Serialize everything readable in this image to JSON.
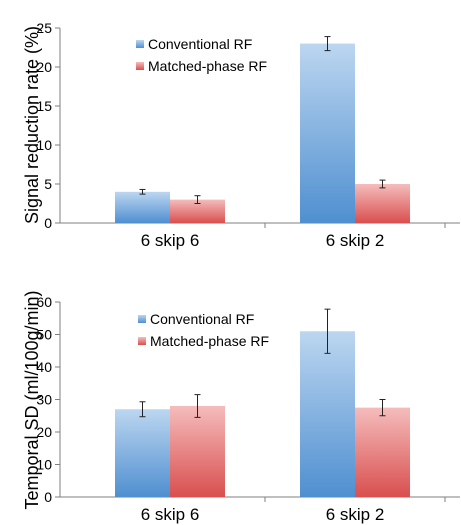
{
  "chart_data": [
    {
      "type": "bar",
      "categories": [
        "6 skip 6",
        "6 skip 2"
      ],
      "series": [
        {
          "name": "Conventional RF",
          "values": [
            4.0,
            23.0
          ],
          "errors": [
            0.3,
            0.9
          ],
          "color": "#5b9bd5"
        },
        {
          "name": "Matched-phase RF",
          "values": [
            3.0,
            5.0
          ],
          "errors": [
            0.5,
            0.5
          ],
          "color": "#e46c6c"
        }
      ],
      "ylabel": "Signal reduction rate (%)",
      "xlabel": "",
      "ylim": [
        0,
        25
      ],
      "yticks": [
        0,
        5,
        10,
        15,
        20,
        25
      ],
      "grid": false,
      "legend": "top-left"
    },
    {
      "type": "bar",
      "categories": [
        "6 skip 6",
        "6 skip 2"
      ],
      "series": [
        {
          "name": "Conventional RF",
          "values": [
            27.0,
            51.0
          ],
          "errors": [
            2.3,
            6.8
          ],
          "color": "#5b9bd5"
        },
        {
          "name": "Matched-phase RF",
          "values": [
            28.0,
            27.5
          ],
          "errors": [
            3.5,
            2.5
          ],
          "color": "#e46c6c"
        }
      ],
      "ylabel": "Temporal SD (ml/100g/min)",
      "xlabel": "",
      "ylim": [
        0,
        60
      ],
      "yticks": [
        0,
        10,
        20,
        30,
        40,
        50,
        60
      ],
      "grid": false,
      "legend": "top-left"
    }
  ]
}
